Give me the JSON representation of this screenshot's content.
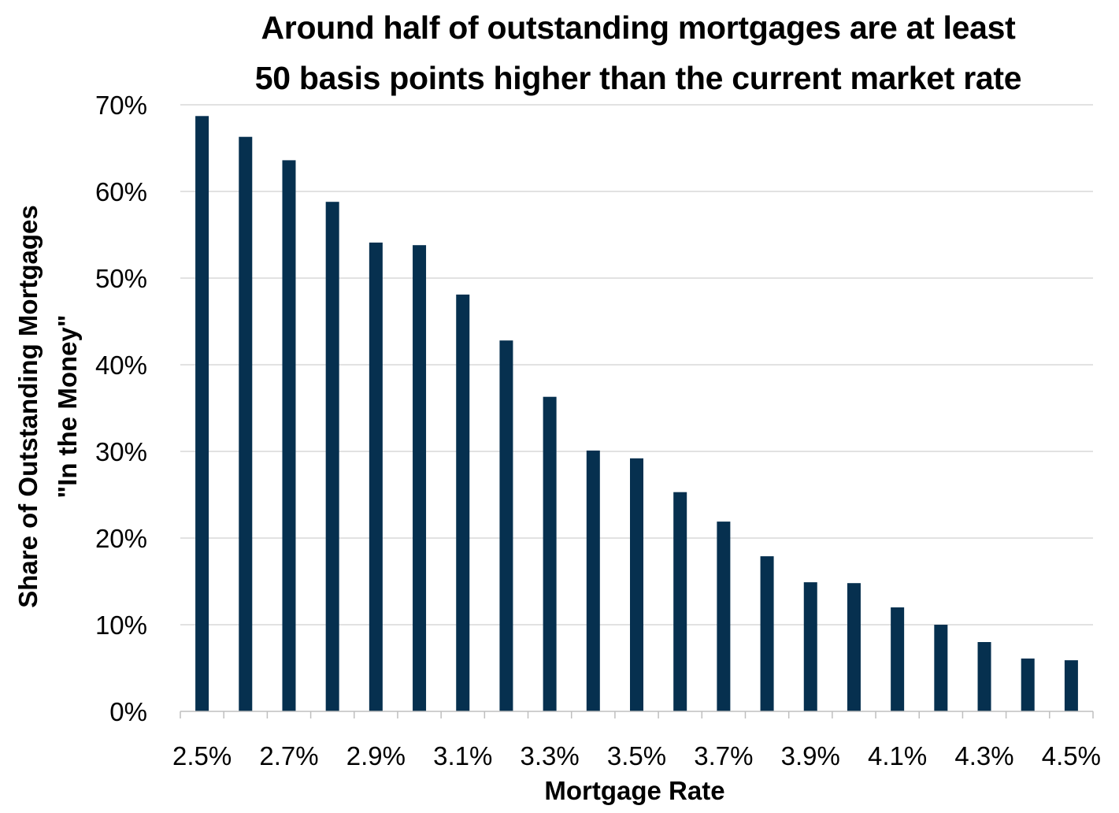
{
  "chart_data": {
    "type": "bar",
    "title_lines": [
      "Around half of outstanding mortgages are at least",
      "50 basis points higher than the current market rate"
    ],
    "xlabel": "Mortgage Rate",
    "ylabel_lines": [
      "Share of Outstanding Mortgages",
      "\"In the Money\""
    ],
    "categories": [
      "2.5%",
      "2.6%",
      "2.7%",
      "2.8%",
      "2.9%",
      "3.0%",
      "3.1%",
      "3.2%",
      "3.3%",
      "3.4%",
      "3.5%",
      "3.6%",
      "3.7%",
      "3.8%",
      "3.9%",
      "4.0%",
      "4.1%",
      "4.2%",
      "4.3%",
      "4.4%",
      "4.5%"
    ],
    "x_tick_labels": [
      "2.5%",
      "",
      "2.7%",
      "",
      "2.9%",
      "",
      "3.1%",
      "",
      "3.3%",
      "",
      "3.5%",
      "",
      "3.7%",
      "",
      "3.9%",
      "",
      "4.1%",
      "",
      "4.3%",
      "",
      "4.5%"
    ],
    "values": [
      68.7,
      66.3,
      63.6,
      58.8,
      54.1,
      53.8,
      48.1,
      42.8,
      36.3,
      30.1,
      29.2,
      25.3,
      21.9,
      17.9,
      14.9,
      14.8,
      12.0,
      10.0,
      8.0,
      6.1,
      5.9
    ],
    "ylim": [
      0,
      70
    ],
    "y_ticks": [
      0,
      10,
      20,
      30,
      40,
      50,
      60,
      70
    ],
    "y_tick_labels": [
      "0%",
      "10%",
      "20%",
      "30%",
      "40%",
      "50%",
      "60%",
      "70%"
    ],
    "grid": true,
    "legend": "none",
    "bar_color": "#06304f",
    "grid_color": "#d9d9d9",
    "axis_color": "#bfbfbf"
  }
}
